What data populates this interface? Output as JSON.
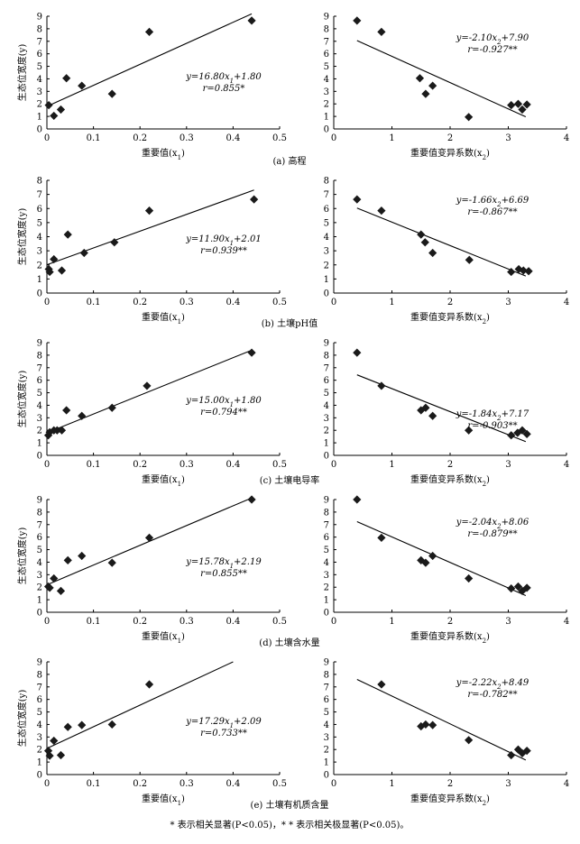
{
  "figure_note": "* 表示相关显著(P<0.05)，* * 表示相关极显著(P<0.05)。",
  "ylabel": "生态位宽度(y)",
  "chart_data": [
    {
      "type": "scatter",
      "row": 0,
      "col": 0,
      "caption": "(a) 高程",
      "xlabel": "重要值(x1)",
      "ylabel": "生态位宽度(y)",
      "xlim": [
        0,
        0.5
      ],
      "ylim": [
        0,
        9
      ],
      "xticks": [
        "0",
        "0.1",
        "0.2",
        "0.3",
        "0.4",
        "0.5"
      ],
      "yticks": [
        "0",
        "1",
        "2",
        "3",
        "4",
        "5",
        "6",
        "7",
        "8",
        "9"
      ],
      "points": [
        [
          0.004,
          1.9
        ],
        [
          0.015,
          1.05
        ],
        [
          0.03,
          1.55
        ],
        [
          0.042,
          4.05
        ],
        [
          0.075,
          3.45
        ],
        [
          0.14,
          2.8
        ],
        [
          0.22,
          7.75
        ],
        [
          0.44,
          8.65
        ]
      ],
      "fit": [
        [
          0,
          1.8
        ],
        [
          0.44,
          9.19
        ]
      ],
      "equation": "y=16.80x1+1.80",
      "r_text": "r=0.855*"
    },
    {
      "type": "scatter",
      "row": 0,
      "col": 1,
      "xlabel": "重要值变异系数(x2)",
      "ylabel": "",
      "xlim": [
        0,
        4
      ],
      "ylim": [
        0,
        9
      ],
      "xticks": [
        "0",
        "1",
        "2",
        "3",
        "4"
      ],
      "yticks": [
        "0",
        "1",
        "2",
        "3",
        "4",
        "5",
        "6",
        "7",
        "8",
        "9"
      ],
      "points": [
        [
          0.4,
          8.65
        ],
        [
          0.82,
          7.75
        ],
        [
          1.48,
          4.05
        ],
        [
          1.58,
          2.8
        ],
        [
          1.7,
          3.45
        ],
        [
          2.32,
          0.95
        ],
        [
          3.05,
          1.9
        ],
        [
          3.17,
          2.0
        ],
        [
          3.24,
          1.55
        ],
        [
          3.32,
          1.95
        ]
      ],
      "fit": [
        [
          0.4,
          7.06
        ],
        [
          3.3,
          0.97
        ]
      ],
      "equation": "y=-2.10x2+7.90",
      "r_text": "r=-0.927**"
    },
    {
      "type": "scatter",
      "row": 1,
      "col": 0,
      "caption": "(b) 土壤pH值",
      "xlabel": "重要值(x1)",
      "ylabel": "生态位宽度(y)",
      "xlim": [
        0,
        0.5
      ],
      "ylim": [
        0,
        8
      ],
      "xticks": [
        "0",
        "0.1",
        "0.2",
        "0.3",
        "0.4",
        "0.5"
      ],
      "yticks": [
        "0",
        "1",
        "2",
        "3",
        "4",
        "5",
        "6",
        "7",
        "8"
      ],
      "points": [
        [
          0.004,
          1.7
        ],
        [
          0.006,
          1.5
        ],
        [
          0.015,
          2.4
        ],
        [
          0.032,
          1.6
        ],
        [
          0.045,
          4.15
        ],
        [
          0.08,
          2.85
        ],
        [
          0.145,
          3.6
        ],
        [
          0.22,
          5.85
        ],
        [
          0.445,
          6.65
        ]
      ],
      "fit": [
        [
          0,
          2.01
        ],
        [
          0.445,
          7.31
        ]
      ],
      "equation": "y=11.90x1+2.01",
      "r_text": "r=0.939**"
    },
    {
      "type": "scatter",
      "row": 1,
      "col": 1,
      "xlabel": "重要值变异系数(x2)",
      "ylabel": "",
      "xlim": [
        0,
        4
      ],
      "ylim": [
        0,
        8
      ],
      "xticks": [
        "0",
        "1",
        "2",
        "3",
        "4"
      ],
      "yticks": [
        "0",
        "1",
        "2",
        "3",
        "4",
        "5",
        "6",
        "7",
        "8"
      ],
      "points": [
        [
          0.4,
          6.65
        ],
        [
          0.82,
          5.85
        ],
        [
          1.5,
          4.15
        ],
        [
          1.57,
          3.6
        ],
        [
          1.7,
          2.85
        ],
        [
          2.33,
          2.35
        ],
        [
          3.05,
          1.5
        ],
        [
          3.18,
          1.7
        ],
        [
          3.26,
          1.6
        ],
        [
          3.35,
          1.55
        ]
      ],
      "fit": [
        [
          0.4,
          6.03
        ],
        [
          3.3,
          1.21
        ]
      ],
      "equation": "y=-1.66x2+6.69",
      "r_text": "r=-0.867**"
    },
    {
      "type": "scatter",
      "row": 2,
      "col": 0,
      "caption": "(c) 土壤电导率",
      "xlabel": "重要值(x1)",
      "ylabel": "生态位宽度(y)",
      "xlim": [
        0,
        0.5
      ],
      "ylim": [
        0,
        9
      ],
      "xticks": [
        "0",
        "0.1",
        "0.2",
        "0.3",
        "0.4",
        "0.5"
      ],
      "yticks": [
        "0",
        "1",
        "2",
        "3",
        "4",
        "5",
        "6",
        "7",
        "8",
        "9"
      ],
      "points": [
        [
          0.003,
          1.6
        ],
        [
          0.006,
          1.85
        ],
        [
          0.015,
          2.0
        ],
        [
          0.022,
          2.0
        ],
        [
          0.032,
          2.0
        ],
        [
          0.042,
          3.6
        ],
        [
          0.075,
          3.15
        ],
        [
          0.14,
          3.8
        ],
        [
          0.215,
          5.55
        ],
        [
          0.44,
          8.2
        ]
      ],
      "fit": [
        [
          0,
          1.8
        ],
        [
          0.44,
          8.4
        ]
      ],
      "equation": "y=15.00x1+1.80",
      "r_text": "r=0.794**"
    },
    {
      "type": "scatter",
      "row": 2,
      "col": 1,
      "xlabel": "重要值变异系数(x2)",
      "ylabel": "",
      "xlim": [
        0,
        4
      ],
      "ylim": [
        0,
        9
      ],
      "xticks": [
        "0",
        "1",
        "2",
        "3",
        "4"
      ],
      "yticks": [
        "0",
        "1",
        "2",
        "3",
        "4",
        "5",
        "6",
        "7",
        "8",
        "9"
      ],
      "points": [
        [
          0.4,
          8.2
        ],
        [
          0.82,
          5.55
        ],
        [
          1.5,
          3.6
        ],
        [
          1.58,
          3.8
        ],
        [
          1.7,
          3.15
        ],
        [
          2.32,
          2.0
        ],
        [
          3.05,
          1.6
        ],
        [
          3.16,
          1.8
        ],
        [
          3.24,
          2.0
        ],
        [
          3.32,
          1.7
        ]
      ],
      "fit": [
        [
          0.4,
          6.43
        ],
        [
          3.3,
          1.1
        ]
      ],
      "equation": "y=-1.84x2+7.17",
      "r_text": "r=-0.903**"
    },
    {
      "type": "scatter",
      "row": 3,
      "col": 0,
      "caption": "(d) 土壤含水量",
      "xlabel": "重要值(x1)",
      "ylabel": "生态位宽度(y)",
      "xlim": [
        0,
        0.5
      ],
      "ylim": [
        0,
        9
      ],
      "xticks": [
        "0",
        "0.1",
        "0.2",
        "0.3",
        "0.4",
        "0.5"
      ],
      "yticks": [
        "0",
        "1",
        "2",
        "3",
        "4",
        "5",
        "6",
        "7",
        "8",
        "9"
      ],
      "points": [
        [
          0.003,
          2.05
        ],
        [
          0.006,
          1.95
        ],
        [
          0.015,
          2.7
        ],
        [
          0.03,
          1.7
        ],
        [
          0.045,
          4.15
        ],
        [
          0.075,
          4.5
        ],
        [
          0.14,
          3.95
        ],
        [
          0.22,
          5.95
        ],
        [
          0.44,
          9.0
        ]
      ],
      "fit": [
        [
          0,
          2.19
        ],
        [
          0.44,
          9.13
        ]
      ],
      "equation": "y=15.78x1+2.19",
      "r_text": "r=0.855**"
    },
    {
      "type": "scatter",
      "row": 3,
      "col": 1,
      "xlabel": "重要值变异系数(x2)",
      "ylabel": "",
      "xlim": [
        0,
        4
      ],
      "ylim": [
        0,
        9
      ],
      "xticks": [
        "0",
        "1",
        "2",
        "3",
        "4"
      ],
      "yticks": [
        "0",
        "1",
        "2",
        "3",
        "4",
        "5",
        "6",
        "7",
        "8",
        "9"
      ],
      "points": [
        [
          0.4,
          9.0
        ],
        [
          0.82,
          5.95
        ],
        [
          1.5,
          4.15
        ],
        [
          1.58,
          3.95
        ],
        [
          1.7,
          4.5
        ],
        [
          2.32,
          2.7
        ],
        [
          3.05,
          1.9
        ],
        [
          3.17,
          2.05
        ],
        [
          3.24,
          1.7
        ],
        [
          3.32,
          1.95
        ]
      ],
      "fit": [
        [
          0.4,
          7.24
        ],
        [
          3.3,
          1.33
        ]
      ],
      "equation": "y=-2.04x2+8.06",
      "r_text": "r=-0.879**"
    },
    {
      "type": "scatter",
      "row": 4,
      "col": 0,
      "caption": "(e) 土壤有机质含量",
      "xlabel": "重要值(x1)",
      "ylabel": "生态位宽度(y)",
      "xlim": [
        0,
        0.5
      ],
      "ylim": [
        0,
        9
      ],
      "xticks": [
        "0",
        "0.1",
        "0.2",
        "0.3",
        "0.4",
        "0.5"
      ],
      "yticks": [
        "0",
        "1",
        "2",
        "3",
        "4",
        "5",
        "6",
        "7",
        "8",
        "9"
      ],
      "points": [
        [
          0.003,
          1.9
        ],
        [
          0.006,
          1.5
        ],
        [
          0.015,
          2.7
        ],
        [
          0.03,
          1.55
        ],
        [
          0.045,
          3.8
        ],
        [
          0.075,
          3.95
        ],
        [
          0.14,
          4.0
        ],
        [
          0.22,
          7.2
        ]
      ],
      "fit": [
        [
          0,
          2.09
        ],
        [
          0.4,
          9.0
        ]
      ],
      "equation": "y=17.29x1+2.09",
      "r_text": "r=0.733**"
    },
    {
      "type": "scatter",
      "row": 4,
      "col": 1,
      "xlabel": "重要值变异系数(x2)",
      "ylabel": "",
      "xlim": [
        0,
        4
      ],
      "ylim": [
        0,
        9
      ],
      "xticks": [
        "0",
        "1",
        "2",
        "3",
        "4"
      ],
      "yticks": [
        "0",
        "1",
        "2",
        "3",
        "4",
        "5",
        "6",
        "7",
        "8",
        "9"
      ],
      "points": [
        [
          0.82,
          7.2
        ],
        [
          1.5,
          3.85
        ],
        [
          1.58,
          4.0
        ],
        [
          1.7,
          3.95
        ],
        [
          2.32,
          2.75
        ],
        [
          3.05,
          1.55
        ],
        [
          3.17,
          2.0
        ],
        [
          3.24,
          1.7
        ],
        [
          3.32,
          1.9
        ]
      ],
      "fit": [
        [
          0.4,
          7.6
        ],
        [
          3.3,
          1.16
        ]
      ],
      "equation": "y=-2.22x2+8.49",
      "r_text": "r=-0.782**"
    }
  ]
}
